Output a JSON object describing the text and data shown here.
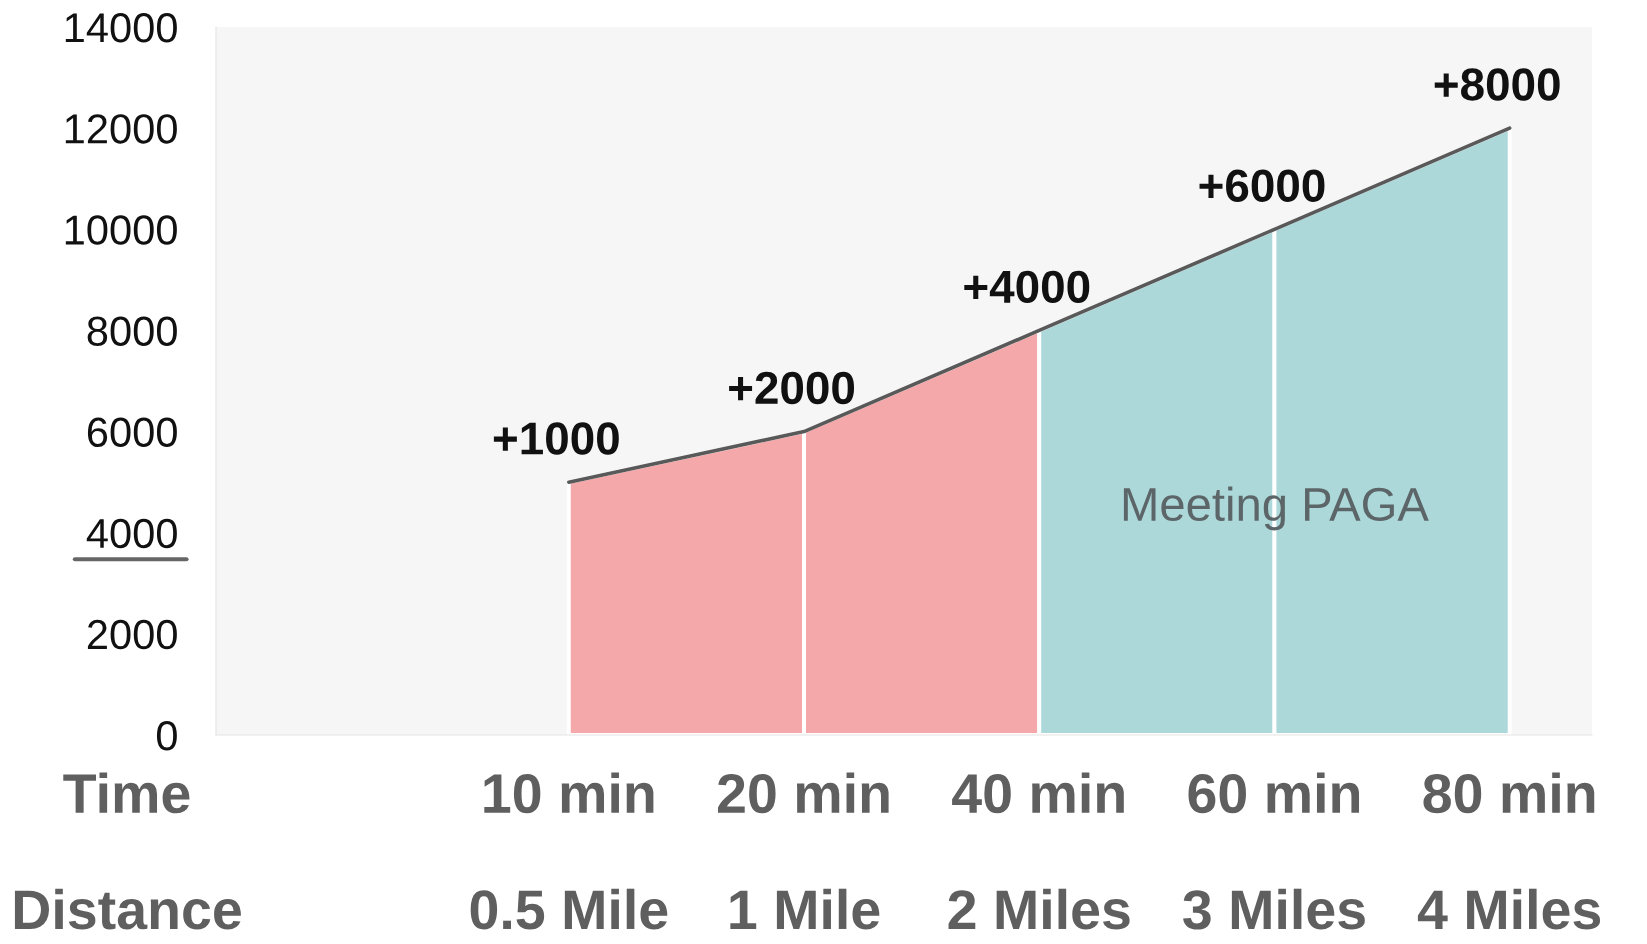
{
  "chart_data": {
    "type": "line",
    "categories": [
      "10 min\n0.5 Mile",
      "20 min\n1 Mile",
      "40 min\n2 Miles",
      "60 min\n3 Miles",
      "80 min\n4 Miles"
    ],
    "ylim": [
      0,
      14000
    ],
    "yticks": [
      0,
      2000,
      4000,
      6000,
      8000,
      10000,
      12000,
      14000
    ],
    "marker": "none",
    "line_style": "solid",
    "series": [
      {
        "type": "area",
        "color": "#f5a8a9",
        "values": [
          5000,
          6000,
          8000,
          null,
          null
        ]
      },
      {
        "type": "area",
        "name": "Meeting PAGA",
        "color": "#acd8da",
        "values": [
          null,
          null,
          8000,
          10000,
          12000
        ]
      },
      {
        "color": "#595959",
        "values": [
          5000,
          6000,
          8000,
          10000,
          12000
        ]
      }
    ],
    "annotations": [
      "Time",
      "Distance",
      {
        "text": "+1000",
        "x": "10 min\n0.5 Mile",
        "y": 5000
      },
      {
        "text": "+2000",
        "x": "20 min\n1 Mile",
        "y": 6000
      },
      {
        "text": "+4000",
        "x": "40 min\n2 Miles",
        "y": 8000
      },
      {
        "text": "+6000",
        "x": "60 min\n3 Miles",
        "y": 10000
      },
      {
        "text": "+8000",
        "x": "80 min\n4 Miles",
        "y": 12000
      }
    ]
  }
}
